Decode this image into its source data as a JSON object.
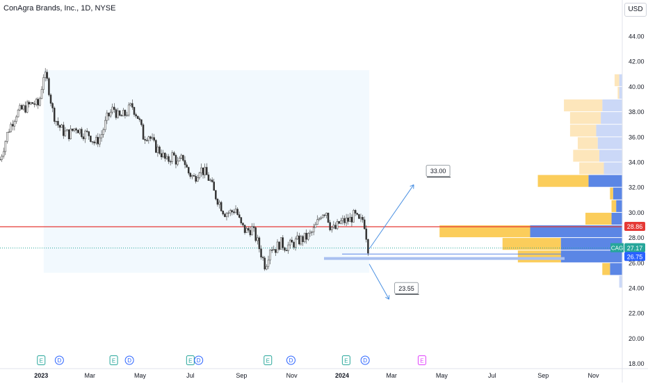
{
  "title": "ConAgra Brands, Inc., 1D, NYSE",
  "currency_button": "USD",
  "chart_data": {
    "type": "candlestick",
    "symbol": "CAG",
    "ylim": [
      18,
      45
    ],
    "y_ticks": [
      "44.00",
      "42.00",
      "40.00",
      "38.00",
      "36.00",
      "34.00",
      "32.00",
      "30.00",
      "28.00",
      "26.00",
      "24.00",
      "22.00",
      "20.00",
      "18.00"
    ],
    "x_ticks": [
      "2023",
      "Mar",
      "May",
      "Jul",
      "Sep",
      "Nov",
      "2024",
      "Mar",
      "May",
      "Jul",
      "Sep",
      "Nov"
    ],
    "x_tick_values": [
      0,
      59,
      120,
      181,
      243,
      304,
      365,
      425,
      486,
      547,
      609,
      670
    ],
    "x_domain": [
      -50,
      705
    ],
    "close_path": [
      [
        -50,
        34.2
      ],
      [
        -40,
        36.5
      ],
      [
        -30,
        37.9
      ],
      [
        -20,
        38.3
      ],
      [
        -10,
        38.7
      ],
      [
        -3,
        38.5
      ],
      [
        3,
        41
      ],
      [
        8,
        40.3
      ],
      [
        14,
        38
      ],
      [
        20,
        37
      ],
      [
        27,
        36.4
      ],
      [
        34,
        36.2
      ],
      [
        42,
        36.8
      ],
      [
        50,
        36.3
      ],
      [
        58,
        36.2
      ],
      [
        65,
        35.5
      ],
      [
        72,
        36
      ],
      [
        80,
        37.5
      ],
      [
        88,
        38.3
      ],
      [
        94,
        37.5
      ],
      [
        102,
        37.8
      ],
      [
        110,
        38.5
      ],
      [
        118,
        37.5
      ],
      [
        124,
        36
      ],
      [
        130,
        36.2
      ],
      [
        138,
        35.2
      ],
      [
        145,
        34.8
      ],
      [
        152,
        34
      ],
      [
        160,
        34.6
      ],
      [
        166,
        33.8
      ],
      [
        172,
        34.4
      ],
      [
        178,
        33.2
      ],
      [
        186,
        32.7
      ],
      [
        192,
        33.5
      ],
      [
        198,
        33.2
      ],
      [
        205,
        32.5
      ],
      [
        210,
        31.5
      ],
      [
        216,
        30.8
      ],
      [
        222,
        30
      ],
      [
        230,
        30
      ],
      [
        236,
        30.3
      ],
      [
        242,
        29
      ],
      [
        248,
        28.5
      ],
      [
        256,
        28.7
      ],
      [
        262,
        27.7
      ],
      [
        268,
        26.5
      ],
      [
        272,
        25.7
      ],
      [
        278,
        27.3
      ],
      [
        284,
        27.1
      ],
      [
        290,
        27.6
      ],
      [
        296,
        27.3
      ],
      [
        302,
        27.4
      ],
      [
        310,
        27.7
      ],
      [
        318,
        27.9
      ],
      [
        324,
        28.1
      ],
      [
        330,
        28.5
      ],
      [
        336,
        29.3
      ],
      [
        340,
        30
      ],
      [
        346,
        30.1
      ],
      [
        350,
        29
      ],
      [
        356,
        28.6
      ],
      [
        362,
        29.2
      ],
      [
        368,
        29.3
      ],
      [
        374,
        29.4
      ],
      [
        380,
        29.8
      ],
      [
        386,
        29.2
      ],
      [
        391,
        29.5
      ],
      [
        394,
        28.4
      ],
      [
        396,
        27.3
      ],
      [
        398,
        27.0
      ]
    ],
    "highlight_range": {
      "x": [
        3,
        398
      ],
      "y": [
        25.2,
        41.3
      ]
    },
    "horizontal_lines": [
      {
        "price": 28.86,
        "label": "28.86",
        "color": "#e53935"
      },
      {
        "price": 27.17,
        "label": "27.17",
        "color": "#26a69a",
        "name": "CAG"
      },
      {
        "price": 26.75,
        "label": "26.75",
        "color": "#2962ff"
      }
    ],
    "projections": [
      {
        "from": [
          398,
          27.1
        ],
        "to": [
          452,
          32.2
        ],
        "label": "33.00"
      },
      {
        "from": [
          398,
          25.9
        ],
        "to": [
          422,
          23.1
        ],
        "label": "23.55"
      }
    ],
    "events": [
      {
        "x": 0,
        "type": "E"
      },
      {
        "x": 22,
        "type": "D"
      },
      {
        "x": 88,
        "type": "E"
      },
      {
        "x": 107,
        "type": "D"
      },
      {
        "x": 181,
        "type": "E"
      },
      {
        "x": 191,
        "type": "D"
      },
      {
        "x": 275,
        "type": "E"
      },
      {
        "x": 303,
        "type": "D"
      },
      {
        "x": 370,
        "type": "E"
      },
      {
        "x": 393,
        "type": "D"
      },
      {
        "x": 462,
        "type": "E",
        "future": true
      }
    ],
    "volume_profile": [
      {
        "price": 40.5,
        "up": 0.03,
        "down": 0.02
      },
      {
        "price": 39.5,
        "up": 0.01,
        "down": 0.02
      },
      {
        "price": 38.5,
        "up": 0.25,
        "down": 0.13
      },
      {
        "price": 37.5,
        "up": 0.2,
        "down": 0.14
      },
      {
        "price": 36.5,
        "up": 0.17,
        "down": 0.17
      },
      {
        "price": 35.5,
        "up": 0.13,
        "down": 0.16
      },
      {
        "price": 34.5,
        "up": 0.17,
        "down": 0.15
      },
      {
        "price": 33.5,
        "up": 0.16,
        "down": 0.12
      },
      {
        "price": 32.5,
        "up": 0.33,
        "down": 0.22
      },
      {
        "price": 31.5,
        "up": 0.02,
        "down": 0.06
      },
      {
        "price": 30.5,
        "up": 0.03,
        "down": 0.04
      },
      {
        "price": 29.5,
        "up": 0.17,
        "down": 0.07
      },
      {
        "price": 28.5,
        "up": 0.59,
        "down": 0.6
      },
      {
        "price": 27.5,
        "up": 0.38,
        "down": 0.4
      },
      {
        "price": 26.5,
        "up": 0.28,
        "down": 0.4
      },
      {
        "price": 25.5,
        "up": 0.05,
        "down": 0.08
      },
      {
        "price": 24.5,
        "up": 0.0,
        "down": 0.02
      }
    ]
  }
}
